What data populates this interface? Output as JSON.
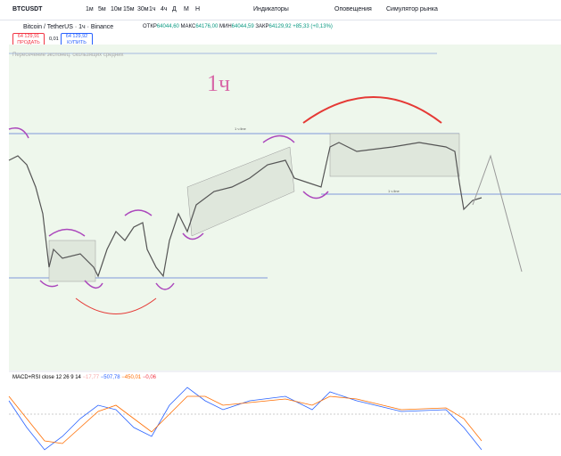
{
  "toolbar": {
    "symbol": "BTCUSDT",
    "intervals": [
      "1м",
      "5м",
      "10м",
      "15м",
      "30м",
      "1ч",
      "4ч",
      "Д",
      "М",
      "Н"
    ],
    "indicators": "Индикаторы",
    "alerts": "Оповещения",
    "replay": "Симулятор рынка"
  },
  "legend": {
    "title": "Bitcoin / TetherUS · 1ч · Binance",
    "open_label": "ОТКР",
    "open": "64044,60",
    "high_label": "МАКС",
    "high": "64176,00",
    "low_label": "МИН",
    "low": "64044,59",
    "close_label": "ЗАКР",
    "close": "64129,92",
    "change": "+85,33 (+0,13%)"
  },
  "trade": {
    "sell_price": "64 129,91",
    "sell": "ПРОДАТЬ",
    "spread": "0,01",
    "buy_price": "64 129,92",
    "buy": "КУПИТЬ"
  },
  "indicator": "Пересечение экспонец. скользящих средних",
  "annotations": {
    "timeframe": "1ч",
    "line_top": "1 ч line",
    "line_mid": "1 ч line"
  },
  "macd": {
    "title": "MACD+RSI close 12 26 9 14",
    "v1": "−17,77",
    "v2": "−507,78",
    "v3": "−450,01",
    "v4": "−0,06"
  }
}
